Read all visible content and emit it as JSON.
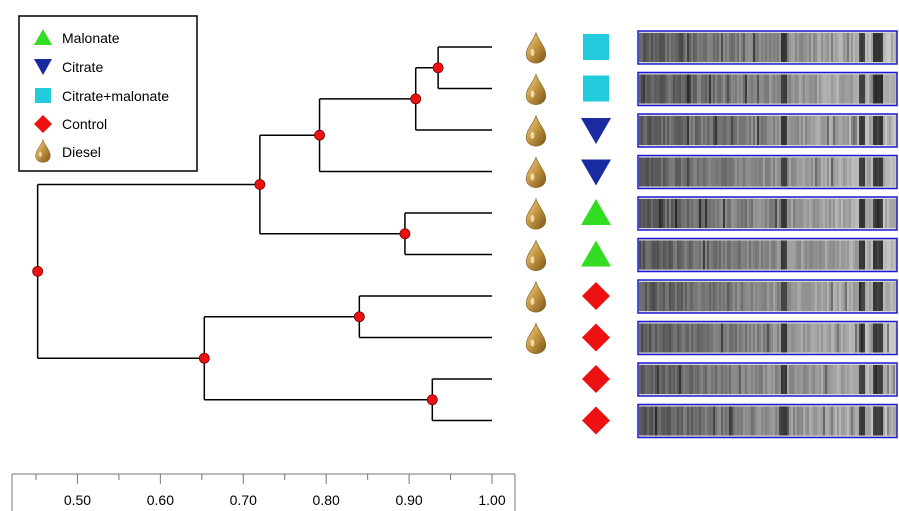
{
  "legend": {
    "items": [
      {
        "label": "Malonate",
        "marker": "triangle-up",
        "color": "#33dd22"
      },
      {
        "label": "Citrate",
        "marker": "triangle-down",
        "color": "#1a2aa0"
      },
      {
        "label": "Citrate+malonate",
        "marker": "square",
        "color": "#22ccdd"
      },
      {
        "label": "Control",
        "marker": "diamond",
        "color": "#ee1111"
      },
      {
        "label": "Diesel",
        "marker": "drop-icon",
        "color": "#b8862e"
      }
    ]
  },
  "dendrogram": {
    "scale": {
      "min": 0.45,
      "max": 1.0,
      "ticks": [
        {
          "value": 0.5,
          "label": "0.50"
        },
        {
          "value": 0.6,
          "label": "0.60"
        },
        {
          "value": 0.7,
          "label": "0.70"
        },
        {
          "value": 0.8,
          "label": "0.80"
        },
        {
          "value": 0.9,
          "label": "0.90"
        },
        {
          "value": 1.0,
          "label": "1.00"
        }
      ]
    },
    "samples": [
      {
        "diesel": true,
        "treatment": "Citrate+malonate"
      },
      {
        "diesel": true,
        "treatment": "Citrate+malonate"
      },
      {
        "diesel": true,
        "treatment": "Citrate"
      },
      {
        "diesel": true,
        "treatment": "Citrate"
      },
      {
        "diesel": true,
        "treatment": "Malonate"
      },
      {
        "diesel": true,
        "treatment": "Malonate"
      },
      {
        "diesel": true,
        "treatment": "Control"
      },
      {
        "diesel": true,
        "treatment": "Control"
      },
      {
        "diesel": false,
        "treatment": "Control"
      },
      {
        "diesel": false,
        "treatment": "Control"
      }
    ],
    "nodes": [
      {
        "id": "n0",
        "similarity": 0.935,
        "children": [
          0,
          1
        ]
      },
      {
        "id": "n1",
        "similarity": 0.908,
        "children": [
          "n0",
          2
        ]
      },
      {
        "id": "n2",
        "similarity": 0.792,
        "children": [
          "n1",
          3
        ]
      },
      {
        "id": "n3",
        "similarity": 0.895,
        "children": [
          4,
          5
        ]
      },
      {
        "id": "n4",
        "similarity": 0.72,
        "children": [
          "n2",
          "n3"
        ]
      },
      {
        "id": "n5",
        "similarity": 0.84,
        "children": [
          6,
          7
        ]
      },
      {
        "id": "n6",
        "similarity": 0.928,
        "children": [
          8,
          9
        ]
      },
      {
        "id": "n7",
        "similarity": 0.653,
        "children": [
          "n5",
          "n6"
        ]
      },
      {
        "id": "n8",
        "similarity": 0.452,
        "children": [
          "n4",
          "n7"
        ]
      }
    ]
  }
}
